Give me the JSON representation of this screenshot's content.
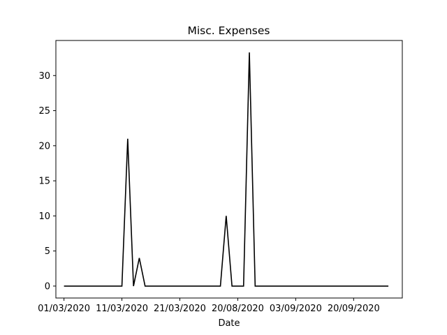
{
  "chart_data": {
    "type": "line",
    "title": "Misc. Expenses",
    "xlabel": "Date",
    "ylabel": "",
    "ylim": [
      -1.7,
      35
    ],
    "xlim": [
      -1.4,
      58.4
    ],
    "yticks": [
      0,
      5,
      10,
      15,
      20,
      25,
      30
    ],
    "xticks": [
      {
        "pos": 0,
        "label": "01/03/2020"
      },
      {
        "pos": 10,
        "label": "11/03/2020"
      },
      {
        "pos": 20,
        "label": "21/03/2020"
      },
      {
        "pos": 30,
        "label": "20/08/2020"
      },
      {
        "pos": 40,
        "label": "03/09/2020"
      },
      {
        "pos": 50,
        "label": "20/09/2020"
      }
    ],
    "grid": false,
    "line_color": "#000000",
    "series": [
      {
        "x": [
          0,
          1,
          2,
          3,
          4,
          5,
          6,
          7,
          8,
          9,
          10,
          11,
          12,
          13,
          14,
          15,
          16,
          17,
          18,
          19,
          20,
          21,
          22,
          23,
          24,
          25,
          26,
          27,
          28,
          29,
          30,
          31,
          32,
          33,
          34,
          35,
          36,
          37,
          38,
          39,
          40,
          41,
          42,
          43,
          44,
          45,
          46,
          47,
          48,
          49,
          50,
          51,
          52,
          53,
          54,
          55,
          56
        ],
        "values": [
          0,
          0,
          0,
          0,
          0,
          0,
          0,
          0,
          0,
          0,
          0,
          21,
          0,
          4,
          0,
          0,
          0,
          0,
          0,
          0,
          0,
          0,
          0,
          0,
          0,
          0,
          0,
          0,
          10,
          0,
          0,
          0,
          33.3,
          0,
          0,
          0,
          0,
          0,
          0,
          0,
          0,
          0,
          0,
          0,
          0,
          0,
          0,
          0,
          0,
          0,
          0,
          0,
          0,
          0,
          0,
          0,
          0
        ]
      }
    ]
  }
}
